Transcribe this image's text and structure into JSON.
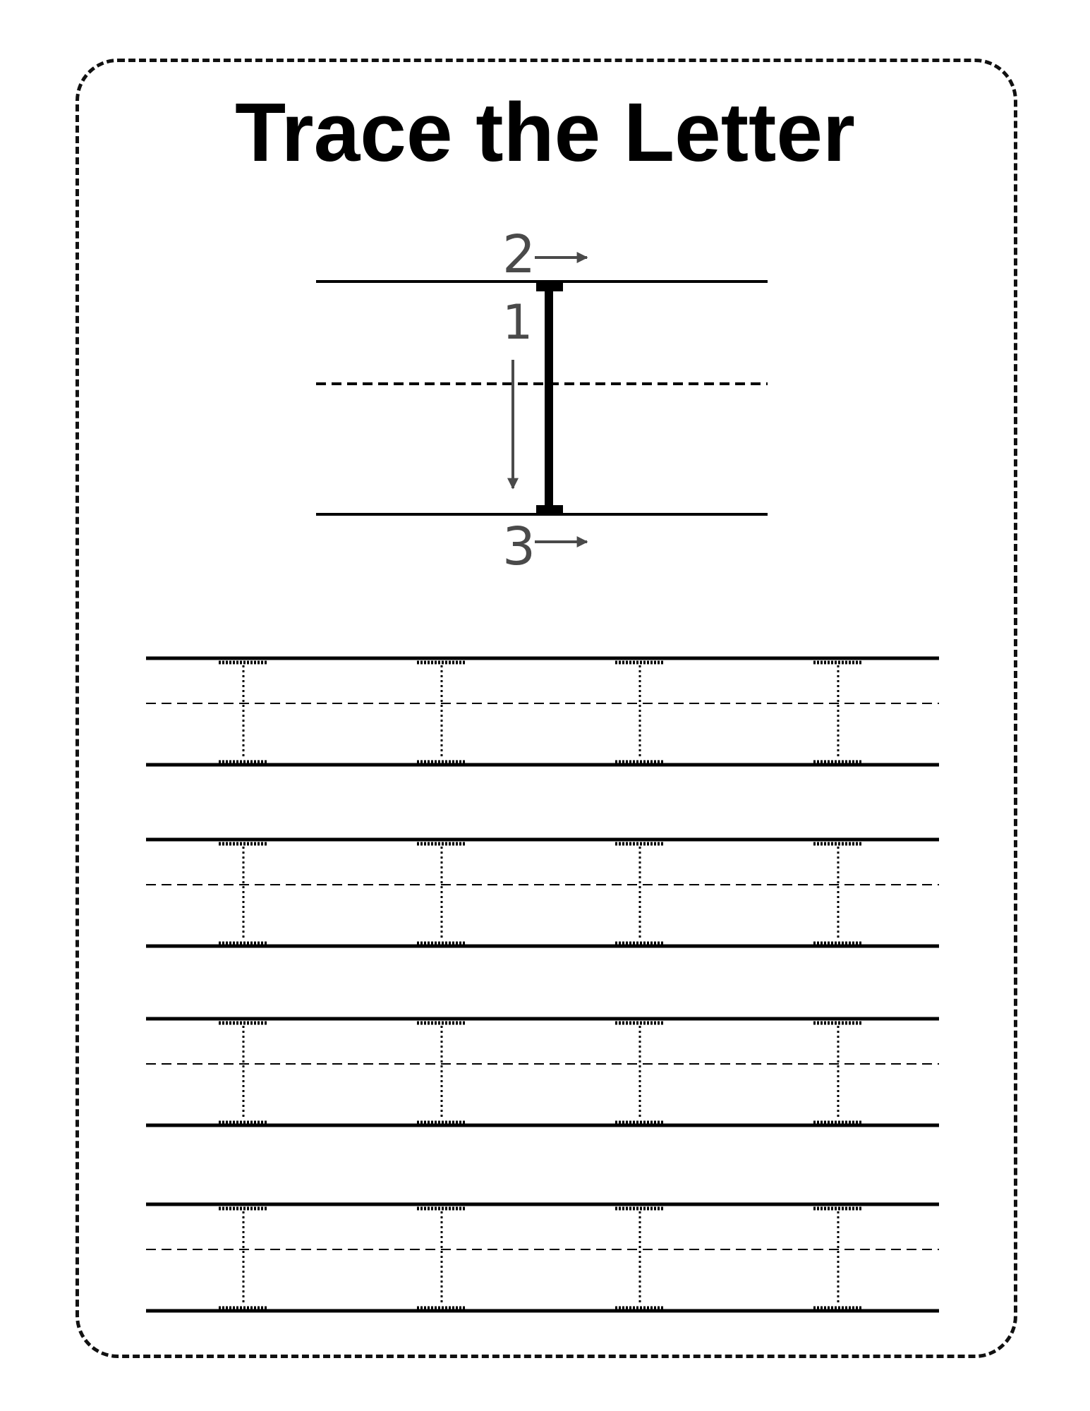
{
  "title": "Trace the Letter",
  "demo": {
    "letter": "I",
    "stroke_numbers": [
      "1",
      "2",
      "3"
    ]
  },
  "practice": {
    "rows": 4,
    "letters_per_row": 4
  },
  "colors": {
    "ink": "#000000",
    "guide_numbers": "#4a4a4a",
    "border": "#111111"
  }
}
